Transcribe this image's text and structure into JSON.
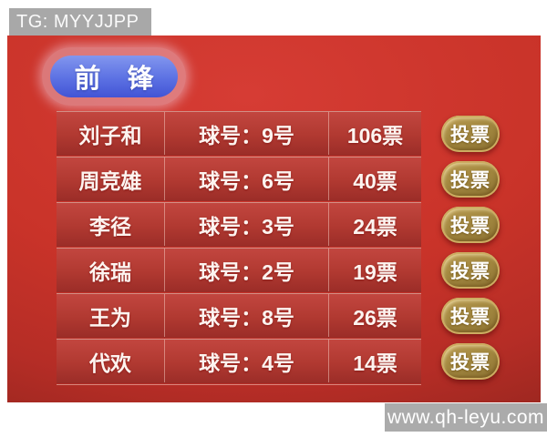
{
  "header": {
    "tg_label": "TG: MYYJJPP"
  },
  "badge": {
    "label": "前　锋"
  },
  "table": {
    "vote_button_label": "投票",
    "players": [
      {
        "name": "刘子和",
        "ball": "球号：9号",
        "votes": "106票"
      },
      {
        "name": "周竞雄",
        "ball": "球号：6号",
        "votes": "40票"
      },
      {
        "name": "李径",
        "ball": "球号：3号",
        "votes": "24票"
      },
      {
        "name": "徐瑞",
        "ball": "球号：2号",
        "votes": "19票"
      },
      {
        "name": "王为",
        "ball": "球号：8号",
        "votes": "26票"
      },
      {
        "name": "代欢",
        "ball": "球号：4号",
        "votes": "14票"
      }
    ]
  },
  "watermark": {
    "url_label": "www.qh-leyu.com"
  },
  "colors": {
    "panel_red": "#c93329",
    "row_red_top": "#c2463f",
    "row_red_bottom": "#9c2d28",
    "badge_blue": "#5c71e3",
    "button_gold": "#cdac61",
    "banner_gray": "#a8a8a8",
    "watermark_gray": "#ababab",
    "text_white": "#ffffff"
  }
}
